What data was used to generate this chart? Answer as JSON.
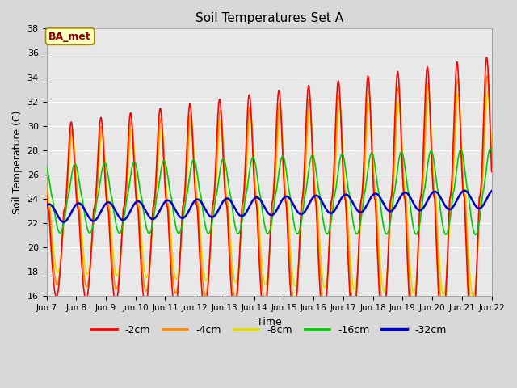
{
  "title": "Soil Temperatures Set A",
  "xlabel": "Time",
  "ylabel": "Soil Temperature (C)",
  "ylim": [
    16,
    38
  ],
  "yticks": [
    16,
    18,
    20,
    22,
    24,
    26,
    28,
    30,
    32,
    34,
    36,
    38
  ],
  "xtick_labels": [
    "Jun 7",
    "Jun 8",
    "Jun 9",
    "Jun 10",
    "Jun 11",
    "Jun 12",
    "Jun 13",
    "Jun 14",
    "Jun 15",
    "Jun 16",
    "Jun 17",
    "Jun 18",
    "Jun 19",
    "Jun 20",
    "Jun 21",
    "Jun 22"
  ],
  "legend_labels": [
    "-2cm",
    "-4cm",
    "-8cm",
    "-16cm",
    "-32cm"
  ],
  "legend_colors": [
    "#ff0000",
    "#ff8800",
    "#dddd00",
    "#00cc00",
    "#0000cc"
  ],
  "line_widths": [
    1.2,
    1.2,
    1.2,
    1.2,
    1.8
  ],
  "annotation_text": "BA_met",
  "annotation_color": "#8b0000",
  "annotation_bg": "#ffffc0",
  "background_color": "#e8e8e8",
  "plot_bg": "#e0e0e0",
  "grid_color": "#d0d0d0",
  "figsize": [
    6.4,
    4.8
  ],
  "dpi": 100
}
